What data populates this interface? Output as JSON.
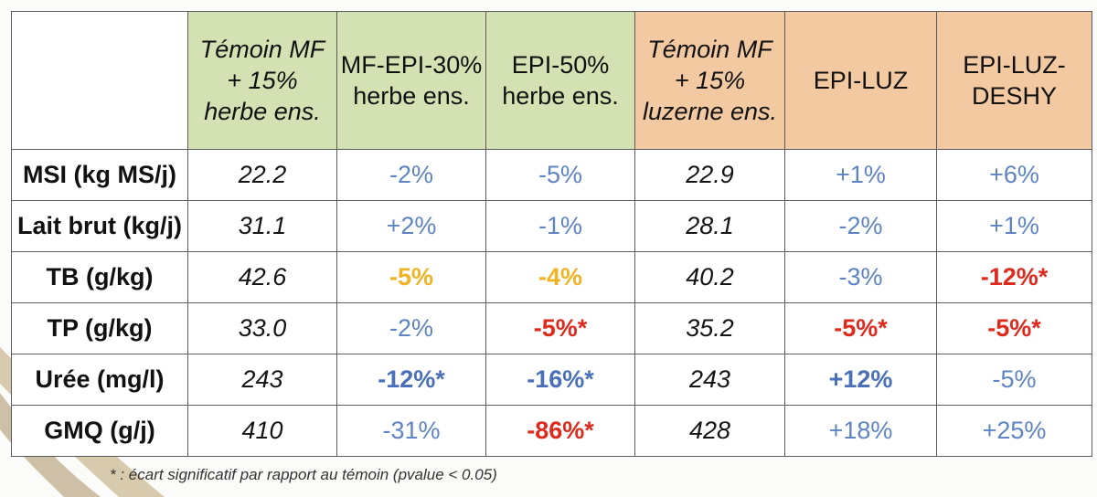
{
  "columns": [
    {
      "lines": [
        "Témoin MF",
        "+ 15%",
        "herbe ens."
      ],
      "tone": "green",
      "italic": true
    },
    {
      "lines": [
        "MF-EPI-30%",
        "herbe ens."
      ],
      "tone": "green",
      "italic": false
    },
    {
      "lines": [
        "EPI-50%",
        "herbe ens."
      ],
      "tone": "green",
      "italic": false
    },
    {
      "lines": [
        "Témoin MF",
        "+ 15%",
        "luzerne ens."
      ],
      "tone": "orange",
      "italic": true
    },
    {
      "lines": [
        "EPI-LUZ"
      ],
      "tone": "orange",
      "italic": false
    },
    {
      "lines": [
        "EPI-LUZ-",
        "DESHY"
      ],
      "tone": "orange",
      "italic": false
    }
  ],
  "rows": [
    {
      "label": "MSI (kg MS/j)",
      "cells": [
        {
          "v": "22.2",
          "s": "black"
        },
        {
          "v": "-2%",
          "s": "blue"
        },
        {
          "v": "-5%",
          "s": "blue"
        },
        {
          "v": "22.9",
          "s": "black"
        },
        {
          "v": "+1%",
          "s": "blue"
        },
        {
          "v": "+6%",
          "s": "blue"
        }
      ]
    },
    {
      "label": "Lait brut (kg/j)",
      "cells": [
        {
          "v": "31.1",
          "s": "black"
        },
        {
          "v": "+2%",
          "s": "blue"
        },
        {
          "v": "-1%",
          "s": "blue"
        },
        {
          "v": "28.1",
          "s": "black"
        },
        {
          "v": "-2%",
          "s": "blue"
        },
        {
          "v": "+1%",
          "s": "blue"
        }
      ]
    },
    {
      "label": "TB (g/kg)",
      "cells": [
        {
          "v": "42.6",
          "s": "black"
        },
        {
          "v": "-5%",
          "s": "yellow"
        },
        {
          "v": "-4%",
          "s": "yellow"
        },
        {
          "v": "40.2",
          "s": "black"
        },
        {
          "v": "-3%",
          "s": "blue"
        },
        {
          "v": "-12%*",
          "s": "red"
        }
      ]
    },
    {
      "label": "TP (g/kg)",
      "cells": [
        {
          "v": "33.0",
          "s": "black"
        },
        {
          "v": "-2%",
          "s": "blue"
        },
        {
          "v": "-5%*",
          "s": "red"
        },
        {
          "v": "35.2",
          "s": "black"
        },
        {
          "v": "-5%*",
          "s": "red"
        },
        {
          "v": "-5%*",
          "s": "red"
        }
      ]
    },
    {
      "label": "Urée (mg/l)",
      "cells": [
        {
          "v": "243",
          "s": "black"
        },
        {
          "v": "-12%*",
          "s": "bblue"
        },
        {
          "v": "-16%*",
          "s": "bblue"
        },
        {
          "v": "243",
          "s": "black"
        },
        {
          "v": "+12%",
          "s": "bblue"
        },
        {
          "v": "-5%",
          "s": "blue"
        }
      ]
    },
    {
      "label": "GMQ (g/j)",
      "cells": [
        {
          "v": "410",
          "s": "black"
        },
        {
          "v": "-31%",
          "s": "blue"
        },
        {
          "v": "-86%*",
          "s": "red"
        },
        {
          "v": "428",
          "s": "black"
        },
        {
          "v": "+18%",
          "s": "blue"
        },
        {
          "v": "+25%",
          "s": "blue"
        }
      ]
    }
  ],
  "footnote": "* : écart significatif par rapport au témoin (pvalue < 0.05)",
  "colors": {
    "green_header": "#d4e1b2",
    "orange_header": "#f3c9a2",
    "blue": "#5f84c4",
    "yellow": "#f0b324",
    "red": "#de2a1d",
    "bold_blue": "#4a70b7"
  }
}
